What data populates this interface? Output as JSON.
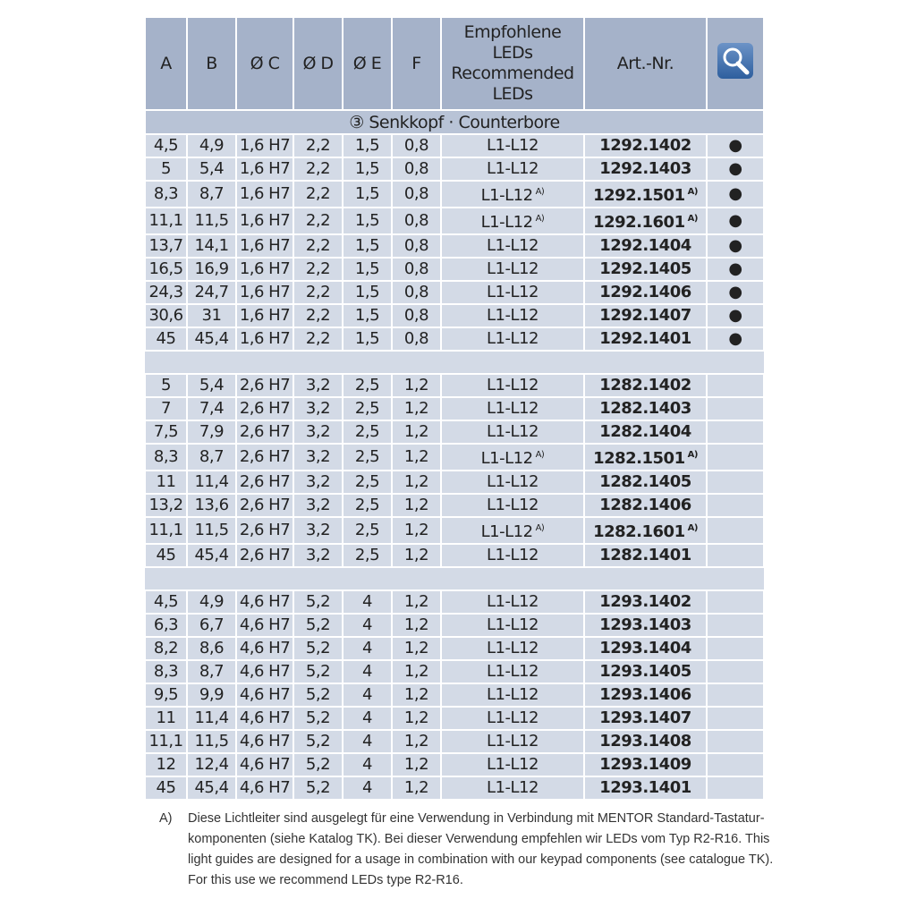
{
  "header": {
    "cols": [
      "A",
      "B",
      "Ø C",
      "Ø D",
      "Ø E",
      "F",
      "Empfohlene LEDs Recommended LEDs",
      "Art.-Nr."
    ],
    "icon": "magnifier-icon"
  },
  "section": "③ Senkkopf · Counterbore",
  "groups": [
    [
      [
        "4,5",
        "4,9",
        "1,6 H7",
        "2,2",
        "1,5",
        "0,8",
        "L1-L12",
        "1292.1402",
        false,
        "●"
      ],
      [
        "5",
        "5,4",
        "1,6 H7",
        "2,2",
        "1,5",
        "0,8",
        "L1-L12",
        "1292.1403",
        false,
        "●"
      ],
      [
        "8,3",
        "8,7",
        "1,6 H7",
        "2,2",
        "1,5",
        "0,8",
        "L1-L12",
        "1292.1501",
        true,
        "●"
      ],
      [
        "11,1",
        "11,5",
        "1,6 H7",
        "2,2",
        "1,5",
        "0,8",
        "L1-L12",
        "1292.1601",
        true,
        "●"
      ],
      [
        "13,7",
        "14,1",
        "1,6 H7",
        "2,2",
        "1,5",
        "0,8",
        "L1-L12",
        "1292.1404",
        false,
        "●"
      ],
      [
        "16,5",
        "16,9",
        "1,6 H7",
        "2,2",
        "1,5",
        "0,8",
        "L1-L12",
        "1292.1405",
        false,
        "●"
      ],
      [
        "24,3",
        "24,7",
        "1,6 H7",
        "2,2",
        "1,5",
        "0,8",
        "L1-L12",
        "1292.1406",
        false,
        "●"
      ],
      [
        "30,6",
        "31",
        "1,6 H7",
        "2,2",
        "1,5",
        "0,8",
        "L1-L12",
        "1292.1407",
        false,
        "●"
      ],
      [
        "45",
        "45,4",
        "1,6 H7",
        "2,2",
        "1,5",
        "0,8",
        "L1-L12",
        "1292.1401",
        false,
        "●"
      ]
    ],
    [
      [
        "5",
        "5,4",
        "2,6 H7",
        "3,2",
        "2,5",
        "1,2",
        "L1-L12",
        "1282.1402",
        false,
        ""
      ],
      [
        "7",
        "7,4",
        "2,6 H7",
        "3,2",
        "2,5",
        "1,2",
        "L1-L12",
        "1282.1403",
        false,
        ""
      ],
      [
        "7,5",
        "7,9",
        "2,6 H7",
        "3,2",
        "2,5",
        "1,2",
        "L1-L12",
        "1282.1404",
        false,
        ""
      ],
      [
        "8,3",
        "8,7",
        "2,6 H7",
        "3,2",
        "2,5",
        "1,2",
        "L1-L12",
        "1282.1501",
        true,
        ""
      ],
      [
        "11",
        "11,4",
        "2,6 H7",
        "3,2",
        "2,5",
        "1,2",
        "L1-L12",
        "1282.1405",
        false,
        ""
      ],
      [
        "13,2",
        "13,6",
        "2,6 H7",
        "3,2",
        "2,5",
        "1,2",
        "L1-L12",
        "1282.1406",
        false,
        ""
      ],
      [
        "11,1",
        "11,5",
        "2,6 H7",
        "3,2",
        "2,5",
        "1,2",
        "L1-L12",
        "1282.1601",
        true,
        ""
      ],
      [
        "45",
        "45,4",
        "2,6 H7",
        "3,2",
        "2,5",
        "1,2",
        "L1-L12",
        "1282.1401",
        false,
        ""
      ]
    ],
    [
      [
        "4,5",
        "4,9",
        "4,6 H7",
        "5,2",
        "4",
        "1,2",
        "L1-L12",
        "1293.1402",
        false,
        ""
      ],
      [
        "6,3",
        "6,7",
        "4,6 H7",
        "5,2",
        "4",
        "1,2",
        "L1-L12",
        "1293.1403",
        false,
        ""
      ],
      [
        "8,2",
        "8,6",
        "4,6 H7",
        "5,2",
        "4",
        "1,2",
        "L1-L12",
        "1293.1404",
        false,
        ""
      ],
      [
        "8,3",
        "8,7",
        "4,6 H7",
        "5,2",
        "4",
        "1,2",
        "L1-L12",
        "1293.1405",
        false,
        ""
      ],
      [
        "9,5",
        "9,9",
        "4,6 H7",
        "5,2",
        "4",
        "1,2",
        "L1-L12",
        "1293.1406",
        false,
        ""
      ],
      [
        "11",
        "11,4",
        "4,6 H7",
        "5,2",
        "4",
        "1,2",
        "L1-L12",
        "1293.1407",
        false,
        ""
      ],
      [
        "11,1",
        "11,5",
        "4,6 H7",
        "5,2",
        "4",
        "1,2",
        "L1-L12",
        "1293.1408",
        false,
        ""
      ],
      [
        "12",
        "12,4",
        "4,6 H7",
        "5,2",
        "4",
        "1,2",
        "L1-L12",
        "1293.1409",
        false,
        ""
      ],
      [
        "45",
        "45,4",
        "4,6 H7",
        "5,2",
        "4",
        "1,2",
        "L1-L12",
        "1293.1401",
        false,
        ""
      ]
    ]
  ],
  "footnote_mark": "A)",
  "note": {
    "key": "A)",
    "text": "Diese Lichtleiter sind ausgelegt für eine Verwendung in Verbindung mit MENTOR Standard-Tastatur-komponenten (siehe Katalog TK). Bei dieser Verwendung empfehlen wir LEDs vom Typ R2-R16. This light guides are designed for a usage in combination with our keypad components (see catalogue TK). For this use we recommend LEDs type R2-R16."
  }
}
